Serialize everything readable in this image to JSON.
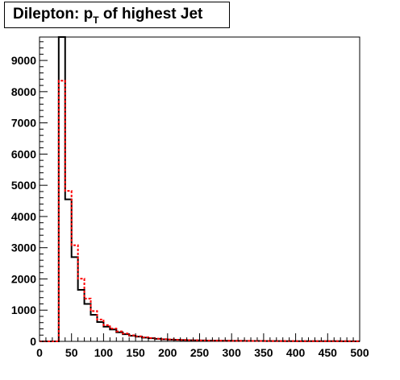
{
  "chart_data": {
    "type": "histogram",
    "title": {
      "prefix": "Dilepton: p",
      "subscript": "T",
      "suffix": " of highest Jet"
    },
    "xlim": [
      0,
      500
    ],
    "ylim": [
      0,
      9750
    ],
    "bin_width": 10,
    "x_ticks": [
      0,
      50,
      100,
      150,
      200,
      250,
      300,
      350,
      400,
      450,
      500
    ],
    "y_ticks": [
      0,
      1000,
      2000,
      3000,
      4000,
      5000,
      6000,
      7000,
      8000,
      9000
    ],
    "grid": false,
    "legend": "none",
    "series": [
      {
        "style": "solid",
        "color": "#000000",
        "values": [
          0,
          0,
          0,
          9750,
          4550,
          2700,
          1650,
          1200,
          850,
          620,
          470,
          380,
          290,
          230,
          180,
          150,
          120,
          100,
          80,
          65,
          55,
          48,
          42,
          36,
          32,
          28,
          25,
          22,
          20,
          18,
          16,
          15,
          14,
          13,
          12,
          11,
          10,
          9,
          8,
          8,
          7,
          7,
          6,
          6,
          5,
          5,
          5,
          4,
          4,
          4
        ]
      },
      {
        "style": "dashed",
        "color": "#ff0000",
        "values": [
          0,
          0,
          0,
          8350,
          4820,
          3080,
          2010,
          1370,
          970,
          700,
          520,
          410,
          320,
          250,
          195,
          160,
          130,
          105,
          85,
          70,
          60,
          52,
          45,
          39,
          34,
          30,
          27,
          24,
          21,
          19,
          17,
          16,
          15,
          14,
          13,
          12,
          11,
          10,
          9,
          9,
          8,
          8,
          7,
          7,
          6,
          6,
          5,
          5,
          5,
          4
        ]
      }
    ]
  }
}
